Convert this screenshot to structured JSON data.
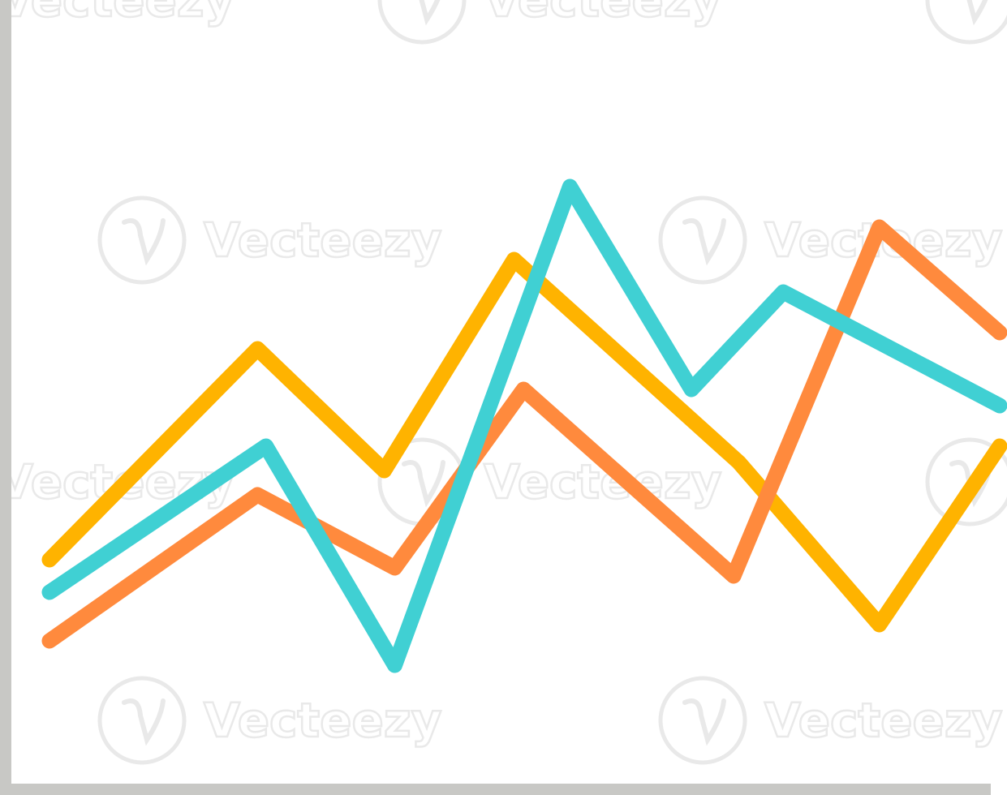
{
  "watermark": {
    "text": "Vecteezy",
    "mark_icon": "vecteezy-v-logo-icon",
    "color": "#e9e9e9"
  },
  "chart_data": {
    "type": "line",
    "title": "",
    "xlabel": "",
    "ylabel": "",
    "x": [
      1,
      2,
      3,
      4,
      5,
      6,
      7,
      8,
      9,
      10
    ],
    "xlim": [
      1,
      10
    ],
    "ylim": [
      0,
      100
    ],
    "grid": false,
    "legend": "none",
    "axis_color": "#c8c8c5",
    "series": [
      {
        "color": "#ffb300",
        "points": [
          [
            1,
            30
          ],
          [
            2.97,
            56
          ],
          [
            4.17,
            41
          ],
          [
            5.4,
            67
          ],
          [
            7.53,
            42
          ],
          [
            8.86,
            22
          ],
          [
            10,
            44
          ]
        ]
      },
      {
        "color": "#ff8a3d",
        "points": [
          [
            1,
            20
          ],
          [
            2.97,
            38
          ],
          [
            4.27,
            29
          ],
          [
            5.49,
            51
          ],
          [
            7.48,
            28
          ],
          [
            8.86,
            71
          ],
          [
            10,
            58
          ]
        ]
      },
      {
        "color": "#40d0d3",
        "points": [
          [
            1,
            26
          ],
          [
            3.05,
            44
          ],
          [
            4.27,
            17
          ],
          [
            5.93,
            76
          ],
          [
            7.08,
            51
          ],
          [
            7.95,
            63
          ],
          [
            10,
            49
          ]
        ]
      }
    ]
  }
}
